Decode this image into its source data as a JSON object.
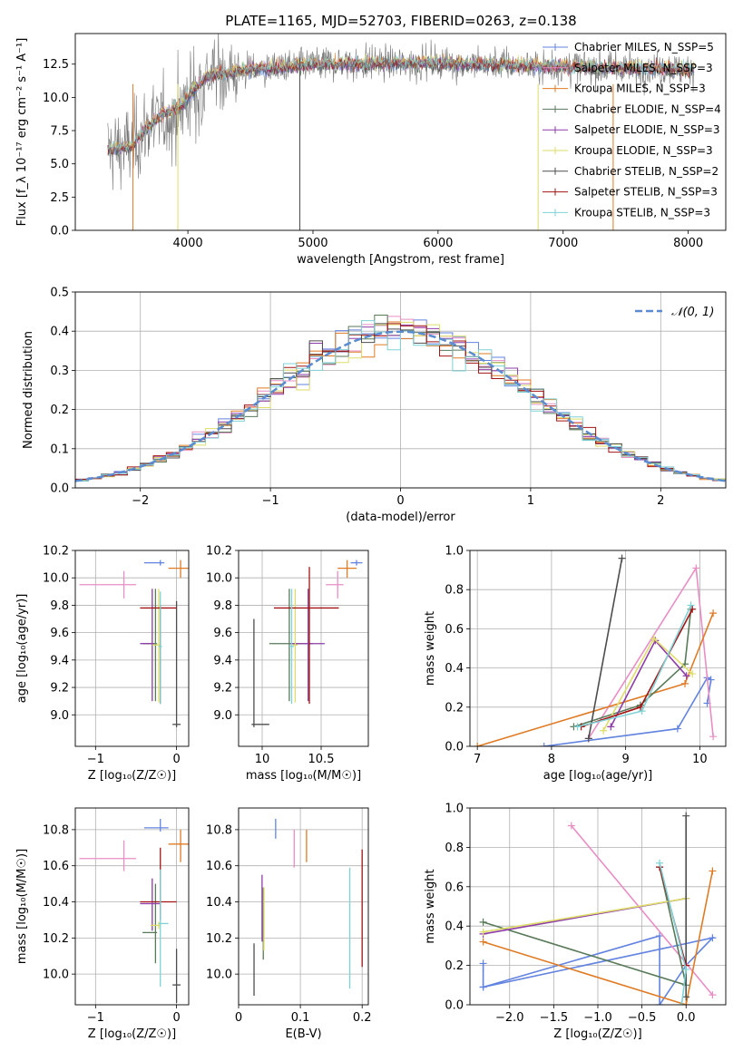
{
  "figure": {
    "title": "PLATE=1165, MJD=52703, FIBERID=0263, z=0.138"
  },
  "colors": {
    "c0": "#6283df",
    "c1": "#e88ec4",
    "c2": "#e07b25",
    "c3": "#587a59",
    "c4": "#8e3ca8",
    "c5": "#dedd6a",
    "c6": "#4d4d4d",
    "c7": "#a21414",
    "c8": "#7fd2d6"
  },
  "chart_data": [
    {
      "id": "spectrum",
      "type": "line",
      "xlabel": "wavelength [Angstrom, rest frame]",
      "ylabel": "Flux [f_λ 10⁻¹⁷ erg cm⁻² s⁻¹ A⁻¹]",
      "xlim": [
        3100,
        8300
      ],
      "ylim": [
        0,
        14.8
      ],
      "xticks": [
        4000,
        5000,
        6000,
        7000,
        8000
      ],
      "yticks": [
        0.0,
        2.5,
        5.0,
        7.5,
        10.0,
        12.5
      ],
      "ytick_labels": [
        "0.0",
        "2.5",
        "5.0",
        "7.5",
        "10.0",
        "12.5"
      ],
      "grid": false,
      "legend_position": "right",
      "legend": [
        {
          "text": "Chabrier MILES, N_SSP=5",
          "color": "c0"
        },
        {
          "text": "Salpeter MILES, N_SSP=3",
          "color": "c1"
        },
        {
          "text": "Kroupa MILES, N_SSP=3",
          "color": "c2"
        },
        {
          "text": "Chabrier ELODIE, N_SSP=4",
          "color": "c3"
        },
        {
          "text": "Salpeter ELODIE, N_SSP=3",
          "color": "c4"
        },
        {
          "text": "Kroupa ELODIE, N_SSP=3",
          "color": "c5"
        },
        {
          "text": "Chabrier STELIB, N_SSP=2",
          "color": "c6"
        },
        {
          "text": "Salpeter STELIB, N_SSP=3",
          "color": "c7"
        },
        {
          "text": "Kroupa STELIB, N_SSP=3",
          "color": "c8"
        }
      ],
      "data_model": {
        "x_range": [
          3360,
          8050
        ],
        "flux_points": [
          [
            3360,
            6.0
          ],
          [
            3550,
            6.3
          ],
          [
            3650,
            7.5
          ],
          [
            3800,
            8.8
          ],
          [
            3950,
            9.4
          ],
          [
            4050,
            10.6
          ],
          [
            4150,
            11.6
          ],
          [
            4400,
            12.0
          ],
          [
            5000,
            12.5
          ],
          [
            6000,
            12.6
          ],
          [
            7000,
            12.3
          ],
          [
            8050,
            12.1
          ]
        ],
        "drop_lines": [
          3560,
          3920,
          4895,
          6800,
          7400
        ]
      }
    },
    {
      "id": "residuals",
      "type": "histogram",
      "xlabel": "(data-model)/error",
      "ylabel": "Normed distribution",
      "xlim": [
        -2.5,
        2.5
      ],
      "ylim": [
        0,
        0.5
      ],
      "xticks": [
        -2,
        -1,
        0,
        1,
        2
      ],
      "xtick_labels": [
        "−2",
        "−1",
        "0",
        "1",
        "2"
      ],
      "yticks": [
        0.0,
        0.1,
        0.2,
        0.3,
        0.4,
        0.5
      ],
      "grid": true,
      "legend_position": "upper right",
      "legend": [
        {
          "text": "𝒩(0, 1)",
          "color": "c0",
          "dashed": true
        }
      ],
      "bin_width": 0.1,
      "curve": "normal(0,1)"
    },
    {
      "id": "age_vs_Z",
      "type": "errorbar",
      "xlabel": "Z [log₁₀(Z/Z☉)]",
      "ylabel": "age  [log₁₀(age/yr)]",
      "xlim": [
        -1.25,
        0.15
      ],
      "ylim": [
        8.77,
        10.2
      ],
      "xticks": [
        -1,
        0
      ],
      "xtick_labels": [
        "−1",
        "0"
      ],
      "yticks": [
        9.0,
        9.2,
        9.4,
        9.6,
        9.8,
        10.0,
        10.2
      ],
      "grid": true,
      "points": [
        {
          "c": "c0",
          "x": -0.2,
          "xe": [
            0.2,
            0.05
          ],
          "y": 10.11,
          "ye": [
            0.02,
            0.02
          ]
        },
        {
          "c": "c1",
          "x": -0.65,
          "xe": [
            0.55,
            0.15
          ],
          "y": 9.95,
          "ye": [
            0.1,
            0.1
          ]
        },
        {
          "c": "c2",
          "x": 0.05,
          "xe": [
            0.15,
            0.1
          ],
          "y": 10.07,
          "ye": [
            0.07,
            0.06
          ]
        },
        {
          "c": "c3",
          "x": -0.26,
          "xe": [
            0.16,
            0.02
          ],
          "y": 9.52,
          "ye": [
            0.42,
            0.4
          ]
        },
        {
          "c": "c4",
          "x": -0.3,
          "xe": [
            0.15,
            0.02
          ],
          "y": 9.52,
          "ye": [
            0.42,
            0.4
          ]
        },
        {
          "c": "c5",
          "x": -0.22,
          "xe": [
            0.08,
            0.02
          ],
          "y": 9.51,
          "ye": [
            0.42,
            0.41
          ]
        },
        {
          "c": "c6",
          "x": 0.0,
          "xe": [
            0.05,
            0.05
          ],
          "y": 8.93,
          "ye": [
            0.02,
            0.9
          ]
        },
        {
          "c": "c7",
          "x": -0.2,
          "xe": [
            0.25,
            0.2
          ],
          "y": 9.78,
          "ye": [
            0.7,
            0.02
          ]
        },
        {
          "c": "c8",
          "x": -0.2,
          "xe": [
            0.02,
            0.02
          ],
          "y": 9.5,
          "ye": [
            0.42,
            0.4
          ]
        }
      ]
    },
    {
      "id": "age_vs_mass",
      "type": "errorbar",
      "xlabel": "mass [log₁₀(M/M☉)]",
      "ylabel": "",
      "xlim": [
        9.8,
        10.9
      ],
      "ylim": [
        8.77,
        10.2
      ],
      "xticks": [
        10.0,
        10.5
      ],
      "yticks": [
        9.0,
        9.2,
        9.4,
        9.6,
        9.8,
        10.0,
        10.2
      ],
      "grid": true,
      "points": [
        {
          "c": "c0",
          "x": 10.8,
          "xe": [
            0.05,
            0.05
          ],
          "y": 10.11,
          "ye": [
            0.02,
            0.02
          ]
        },
        {
          "c": "c1",
          "x": 10.64,
          "xe": [
            0.1,
            0.05
          ],
          "y": 9.95,
          "ye": [
            0.1,
            0.1
          ]
        },
        {
          "c": "c2",
          "x": 10.72,
          "xe": [
            0.08,
            0.08
          ],
          "y": 10.07,
          "ye": [
            0.07,
            0.06
          ]
        },
        {
          "c": "c3",
          "x": 10.23,
          "xe": [
            0.17,
            0.2
          ],
          "y": 9.52,
          "ye": [
            0.42,
            0.4
          ]
        },
        {
          "c": "c4",
          "x": 10.39,
          "xe": [
            0.15,
            0.14
          ],
          "y": 9.52,
          "ye": [
            0.42,
            0.4
          ]
        },
        {
          "c": "c5",
          "x": 10.28,
          "xe": [
            0.02,
            0.02
          ],
          "y": 9.51,
          "ye": [
            0.42,
            0.41
          ]
        },
        {
          "c": "c6",
          "x": 9.93,
          "xe": [
            0.02,
            0.13
          ],
          "y": 8.93,
          "ye": [
            0.02,
            0.77
          ]
        },
        {
          "c": "c7",
          "x": 10.4,
          "xe": [
            0.3,
            0.25
          ],
          "y": 9.78,
          "ye": [
            0.7,
            0.3
          ]
        },
        {
          "c": "c8",
          "x": 10.25,
          "xe": [
            0.02,
            0.02
          ],
          "y": 9.5,
          "ye": [
            0.42,
            0.42
          ]
        }
      ]
    },
    {
      "id": "weight_vs_age",
      "type": "line",
      "xlabel": "age  [log₁₀(age/yr)]",
      "ylabel": "mass weight",
      "xlim": [
        6.9,
        10.35
      ],
      "ylim": [
        0,
        1.0
      ],
      "xticks": [
        7,
        8,
        9,
        10
      ],
      "yticks": [
        0.0,
        0.2,
        0.4,
        0.6,
        0.8,
        1.0
      ],
      "grid": true,
      "series": [
        {
          "c": "c0",
          "points": [
            [
              7.9,
              0.0
            ],
            [
              9.7,
              0.09
            ],
            [
              10.1,
              0.35
            ],
            [
              10.15,
              0.34
            ],
            [
              10.1,
              0.22
            ]
          ]
        },
        {
          "c": "c1",
          "points": [
            [
              8.5,
              0.04
            ],
            [
              9.95,
              0.91
            ],
            [
              10.18,
              0.05
            ]
          ]
        },
        {
          "c": "c2",
          "points": [
            [
              7.0,
              0.0
            ],
            [
              9.8,
              0.32
            ],
            [
              10.18,
              0.68
            ]
          ]
        },
        {
          "c": "c3",
          "points": [
            [
              8.3,
              0.1
            ],
            [
              9.2,
              0.21
            ],
            [
              9.8,
              0.42
            ],
            [
              9.88,
              0.7
            ]
          ]
        },
        {
          "c": "c4",
          "points": [
            [
              8.8,
              0.1
            ],
            [
              9.4,
              0.54
            ],
            [
              9.82,
              0.36
            ]
          ]
        },
        {
          "c": "c5",
          "points": [
            [
              8.7,
              0.08
            ],
            [
              9.38,
              0.55
            ],
            [
              9.9,
              0.37
            ]
          ]
        },
        {
          "c": "c6",
          "points": [
            [
              8.5,
              0.04
            ],
            [
              8.95,
              0.96
            ]
          ]
        },
        {
          "c": "c7",
          "points": [
            [
              8.4,
              0.1
            ],
            [
              9.2,
              0.2
            ],
            [
              9.9,
              0.7
            ]
          ]
        },
        {
          "c": "c8",
          "points": [
            [
              8.35,
              0.1
            ],
            [
              9.22,
              0.18
            ],
            [
              9.88,
              0.72
            ]
          ]
        }
      ]
    },
    {
      "id": "mass_vs_Z",
      "type": "errorbar",
      "xlabel": "Z [log₁₀(Z/Z☉)]",
      "ylabel": "mass [log₁₀(M/M☉)]",
      "xlim": [
        -1.25,
        0.15
      ],
      "ylim": [
        9.83,
        10.92
      ],
      "xticks": [
        -1,
        0
      ],
      "xtick_labels": [
        "−1",
        "0"
      ],
      "yticks": [
        10.0,
        10.2,
        10.4,
        10.6,
        10.8
      ],
      "grid": true,
      "points": [
        {
          "c": "c0",
          "x": -0.2,
          "xe": [
            0.2,
            0.1
          ],
          "y": 10.81,
          "ye": [
            0.02,
            0.05
          ]
        },
        {
          "c": "c1",
          "x": -0.65,
          "xe": [
            0.55,
            0.15
          ],
          "y": 10.64,
          "ye": [
            0.07,
            0.1
          ]
        },
        {
          "c": "c2",
          "x": 0.05,
          "xe": [
            0.15,
            0.1
          ],
          "y": 10.72,
          "ye": [
            0.1,
            0.08
          ]
        },
        {
          "c": "c3",
          "x": -0.26,
          "xe": [
            0.16,
            0.02
          ],
          "y": 10.23,
          "ye": [
            0.17,
            0.27
          ]
        },
        {
          "c": "c4",
          "x": -0.3,
          "xe": [
            0.15,
            0.1
          ],
          "y": 10.39,
          "ye": [
            0.15,
            0.14
          ]
        },
        {
          "c": "c5",
          "x": -0.22,
          "xe": [
            0.1,
            0.02
          ],
          "y": 10.27,
          "ye": [
            0.02,
            0.02
          ]
        },
        {
          "c": "c6",
          "x": 0.0,
          "xe": [
            0.05,
            0.05
          ],
          "y": 9.94,
          "ye": [
            0.1,
            0.2
          ]
        },
        {
          "c": "c7",
          "x": -0.2,
          "xe": [
            0.25,
            0.2
          ],
          "y": 10.4,
          "ye": [
            0.1,
            0.3
          ]
        },
        {
          "c": "c8",
          "x": -0.2,
          "xe": [
            0.02,
            0.1
          ],
          "y": 10.28,
          "ye": [
            0.35,
            0.3
          ]
        }
      ]
    },
    {
      "id": "mass_vs_EBV",
      "type": "errorbar",
      "xlabel": "E(B-V)",
      "ylabel": "",
      "xlim": [
        0.0,
        0.21
      ],
      "ylim": [
        9.83,
        10.92
      ],
      "xticks": [
        0.0,
        0.1,
        0.2
      ],
      "yticks": [
        10.0,
        10.2,
        10.4,
        10.6,
        10.8
      ],
      "grid": true,
      "points": [
        {
          "c": "c0",
          "x": 0.06,
          "xe": [
            0,
            0
          ],
          "y": 10.8,
          "ye": [
            0.05,
            0.06
          ]
        },
        {
          "c": "c1",
          "x": 0.09,
          "xe": [
            0,
            0
          ],
          "y": 10.7,
          "ye": [
            0.11,
            0.1
          ]
        },
        {
          "c": "c2",
          "x": 0.11,
          "xe": [
            0,
            0
          ],
          "y": 10.7,
          "ye": [
            0.08,
            0.1
          ]
        },
        {
          "c": "c3",
          "x": 0.04,
          "xe": [
            0,
            0
          ],
          "y": 10.28,
          "ye": [
            0.2,
            0.2
          ]
        },
        {
          "c": "c4",
          "x": 0.038,
          "xe": [
            0,
            0
          ],
          "y": 10.3,
          "ye": [
            0.12,
            0.25
          ]
        },
        {
          "c": "c5",
          "x": 0.041,
          "xe": [
            0,
            0
          ],
          "y": 10.28,
          "ye": [
            0.15,
            0.2
          ]
        },
        {
          "c": "c6",
          "x": 0.025,
          "xe": [
            0,
            0
          ],
          "y": 10.03,
          "ye": [
            0.15,
            0.14
          ]
        },
        {
          "c": "c7",
          "x": 0.2,
          "xe": [
            0,
            0
          ],
          "y": 10.36,
          "ye": [
            0.32,
            0.33
          ]
        },
        {
          "c": "c8",
          "x": 0.18,
          "xe": [
            0,
            0
          ],
          "y": 10.26,
          "ye": [
            0.34,
            0.33
          ]
        }
      ]
    },
    {
      "id": "weight_vs_Z",
      "type": "line",
      "xlabel": "Z [log₁₀(Z/Z☉)]",
      "ylabel": "mass weight",
      "xlim": [
        -2.45,
        0.45
      ],
      "ylim": [
        0,
        1.0
      ],
      "xticks": [
        -2.0,
        -1.5,
        -1.0,
        -0.5,
        0.0
      ],
      "xtick_labels": [
        "−2.0",
        "−1.5",
        "−1.0",
        "−0.5",
        "0.0"
      ],
      "yticks": [
        0.0,
        0.2,
        0.4,
        0.6,
        0.8,
        1.0
      ],
      "grid": true,
      "series": [
        {
          "c": "c0",
          "points": [
            [
              -2.3,
              0.09
            ],
            [
              -0.3,
              0.35
            ],
            [
              -0.3,
              0.0
            ],
            [
              0.0,
              0.2
            ],
            [
              0.3,
              0.34
            ],
            [
              -2.3,
              0.09
            ],
            [
              -2.3,
              0.21
            ]
          ]
        },
        {
          "c": "c1",
          "points": [
            [
              -1.3,
              0.91
            ],
            [
              0.3,
              0.05
            ]
          ]
        },
        {
          "c": "c2",
          "points": [
            [
              -2.3,
              0.32
            ],
            [
              0.0,
              0.0
            ],
            [
              0.3,
              0.68
            ]
          ]
        },
        {
          "c": "c3",
          "points": [
            [
              -2.3,
              0.42
            ],
            [
              0.0,
              0.1
            ],
            [
              -0.3,
              0.7
            ]
          ]
        },
        {
          "c": "c4",
          "points": [
            [
              -2.3,
              0.36
            ],
            [
              0.0,
              0.54
            ]
          ]
        },
        {
          "c": "c5",
          "points": [
            [
              -2.3,
              0.37
            ],
            [
              0.0,
              0.54
            ]
          ]
        },
        {
          "c": "c6",
          "points": [
            [
              0.0,
              0.04
            ],
            [
              0.0,
              0.96
            ]
          ]
        },
        {
          "c": "c7",
          "points": [
            [
              -0.3,
              0.7
            ],
            [
              0.0,
              0.2
            ]
          ]
        },
        {
          "c": "c8",
          "points": [
            [
              -0.3,
              0.72
            ],
            [
              0.0,
              0.18
            ],
            [
              -0.05,
              0.0
            ]
          ]
        }
      ]
    }
  ]
}
